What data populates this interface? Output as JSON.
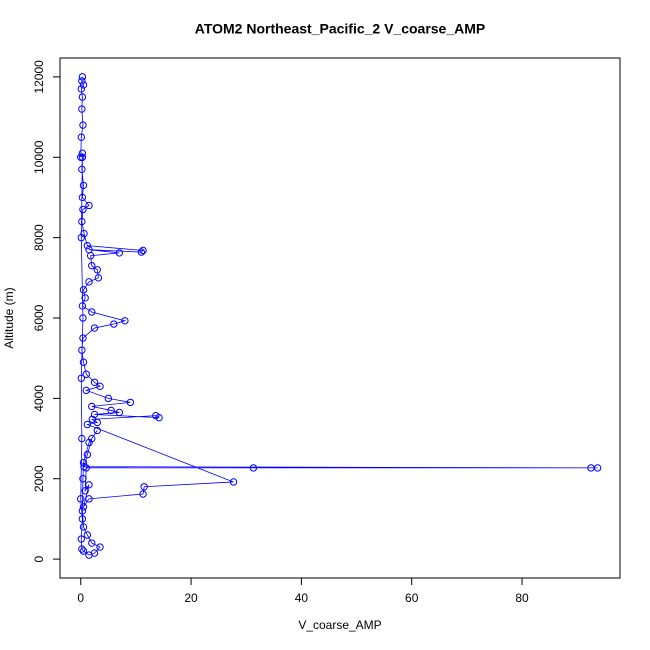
{
  "chart_data": {
    "type": "scatter",
    "title": "ATOM2 Northeast_Pacific_2 V_coarse_AMP",
    "xlabel": "V_coarse_AMP",
    "ylabel": "Altitude (m)",
    "color": "#0000ff",
    "connect": true,
    "x": [
      0.3,
      0.2,
      0.5,
      0.1,
      0.3,
      0.2,
      0.4,
      0.1,
      0.0,
      0.3,
      0.2,
      0.5,
      0.3,
      1.5,
      0.4,
      0.2,
      0.6,
      1.2,
      11.3,
      11.0,
      1.5,
      7.0,
      1.8,
      2.0,
      3.0,
      3.2,
      1.5,
      0.5,
      0.8,
      0.3,
      2.0,
      8.0,
      6.0,
      2.5,
      0.4,
      0.2,
      0.5,
      1.0,
      2.5,
      3.5,
      1.0,
      5.0,
      9.0,
      2.0,
      5.5,
      7.0,
      2.5,
      14.2,
      13.6,
      2.1,
      3.0,
      1.2,
      27.7,
      11.5,
      11.3,
      1.5,
      0.5,
      1.5,
      0.8,
      1.0,
      31.3,
      92.5,
      93.7,
      0.6,
      1.2,
      2.0,
      3.0,
      1.5,
      0.5,
      0.4,
      0.3,
      0.5,
      1.2,
      2.0,
      3.5,
      2.5,
      1.5,
      0.5,
      0.2,
      0.1,
      0.3,
      0.0,
      0.2,
      0.1,
      0.4,
      0.1,
      0.3
    ],
    "y": [
      12000,
      11900,
      11800,
      11700,
      11500,
      11200,
      10800,
      10500,
      10000,
      10100,
      9700,
      9300,
      9000,
      8800,
      8700,
      8400,
      8100,
      7800,
      7680,
      7640,
      7700,
      7620,
      7550,
      7300,
      7200,
      7000,
      6900,
      6700,
      6500,
      6300,
      6150,
      5930,
      5850,
      5750,
      5500,
      5200,
      4900,
      4600,
      4400,
      4300,
      4200,
      4000,
      3900,
      3800,
      3700,
      3650,
      3600,
      3520,
      3570,
      3480,
      3400,
      3350,
      1920,
      1800,
      1620,
      1500,
      1300,
      1850,
      1700,
      2270,
      2270,
      2270,
      2270,
      2300,
      2600,
      3000,
      3200,
      2900,
      2400,
      2000,
      1200,
      800,
      600,
      400,
      300,
      150,
      100,
      200,
      250,
      500,
      1000,
      1500,
      3000,
      4500,
      6000,
      8000,
      10000
    ],
    "xlim": [
      -3.76,
      97.76
    ],
    "ylim": [
      -470,
      12470
    ],
    "xticks": [
      0,
      20,
      40,
      60,
      80
    ],
    "yticks": [
      0,
      2000,
      4000,
      6000,
      8000,
      10000,
      12000
    ]
  }
}
